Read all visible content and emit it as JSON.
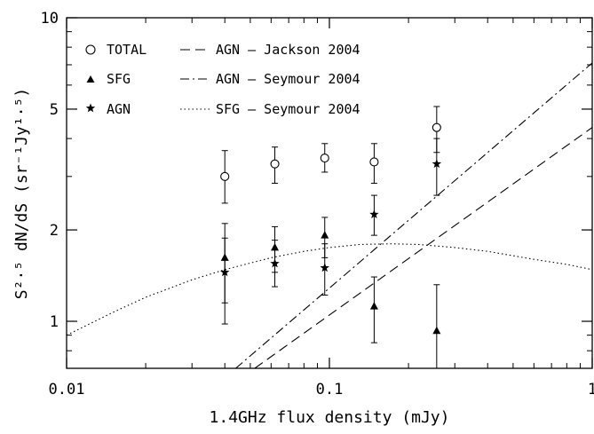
{
  "chart_data": {
    "type": "scatter",
    "xlabel": "1.4GHz flux density (mJy)",
    "ylabel": "S²·⁵ dN/dS (sr⁻¹Jy¹·⁵)",
    "xscale": "log",
    "yscale": "log",
    "xlim": [
      0.01,
      1
    ],
    "ylim": [
      0.7,
      10
    ],
    "x_ticks": [
      {
        "value": 0.01,
        "label": "0.01"
      },
      {
        "value": 0.1,
        "label": "0.1"
      },
      {
        "value": 1,
        "label": "1"
      }
    ],
    "y_ticks": [
      {
        "value": 1,
        "label": "1"
      },
      {
        "value": 2,
        "label": "2"
      },
      {
        "value": 5,
        "label": "5"
      },
      {
        "value": 10,
        "label": "10"
      }
    ],
    "legend_position": "top-left",
    "series": [
      {
        "name": "TOTAL",
        "marker": "open-circle",
        "points": [
          {
            "x": 0.04,
            "y": 3.0,
            "lo": 2.45,
            "hi": 3.65
          },
          {
            "x": 0.062,
            "y": 3.3,
            "lo": 2.85,
            "hi": 3.75
          },
          {
            "x": 0.096,
            "y": 3.45,
            "lo": 3.1,
            "hi": 3.85
          },
          {
            "x": 0.148,
            "y": 3.35,
            "lo": 2.85,
            "hi": 3.85
          },
          {
            "x": 0.256,
            "y": 4.35,
            "lo": 3.6,
            "hi": 5.1
          }
        ]
      },
      {
        "name": "SFG",
        "marker": "filled-triangle",
        "points": [
          {
            "x": 0.04,
            "y": 1.62,
            "lo": 1.15,
            "hi": 2.1
          },
          {
            "x": 0.062,
            "y": 1.75,
            "lo": 1.45,
            "hi": 2.05
          },
          {
            "x": 0.096,
            "y": 1.92,
            "lo": 1.62,
            "hi": 2.2
          },
          {
            "x": 0.148,
            "y": 1.12,
            "lo": 0.85,
            "hi": 1.4
          },
          {
            "x": 0.256,
            "y": 0.93,
            "lo": 0.62,
            "hi": 1.32
          }
        ]
      },
      {
        "name": "AGN",
        "marker": "filled-star",
        "points": [
          {
            "x": 0.04,
            "y": 1.45,
            "lo": 0.98,
            "hi": 1.88
          },
          {
            "x": 0.062,
            "y": 1.55,
            "lo": 1.3,
            "hi": 1.85
          },
          {
            "x": 0.096,
            "y": 1.5,
            "lo": 1.22,
            "hi": 1.8
          },
          {
            "x": 0.148,
            "y": 2.25,
            "lo": 1.92,
            "hi": 2.6
          },
          {
            "x": 0.256,
            "y": 3.3,
            "lo": 2.6,
            "hi": 4.0
          }
        ]
      }
    ],
    "lines": [
      {
        "name": "AGN – Jackson 2004",
        "style": "dashed",
        "x": [
          0.052,
          1.0
        ],
        "y": [
          0.7,
          4.35
        ]
      },
      {
        "name": "AGN – Seymour 2004",
        "style": "dash-dot",
        "x": [
          0.044,
          1.0
        ],
        "y": [
          0.7,
          7.1
        ]
      },
      {
        "name": "SFG – Seymour 2004",
        "style": "dotted",
        "x": [
          0.01,
          0.015,
          0.02,
          0.03,
          0.04,
          0.06,
          0.08,
          0.1,
          0.13,
          0.17,
          0.22,
          0.3,
          0.4,
          0.6,
          0.8,
          1.0
        ],
        "y": [
          0.9,
          1.07,
          1.2,
          1.37,
          1.48,
          1.62,
          1.7,
          1.75,
          1.79,
          1.8,
          1.79,
          1.75,
          1.7,
          1.6,
          1.54,
          1.48
        ]
      }
    ]
  },
  "legend": {
    "col1": [
      "TOTAL",
      "SFG",
      "AGN"
    ],
    "col2": [
      "AGN – Jackson 2004",
      "AGN – Seymour 2004",
      "SFG – Seymour 2004"
    ]
  }
}
